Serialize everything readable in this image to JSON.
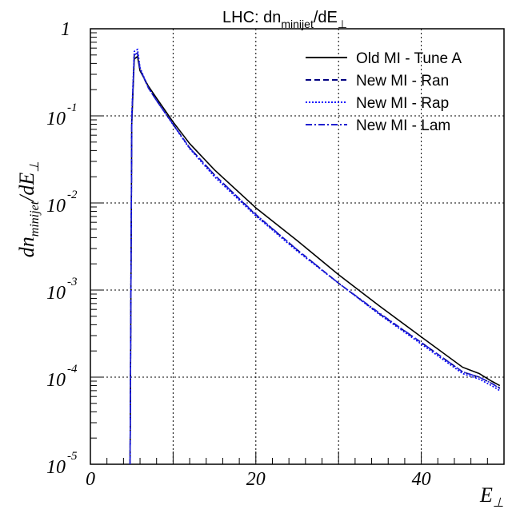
{
  "chart_data": {
    "type": "line",
    "title": "LHC: dn_minijet/dE_⊥",
    "title_parts": {
      "main": "LHC: dn",
      "sub": "minijet",
      "tail": "/dE",
      "tail_sub": "⊥"
    },
    "xlabel": "E_⊥",
    "xlabel_parts": {
      "main": "E",
      "sub": "⊥"
    },
    "ylabel": "dn_minijet/dE_⊥",
    "ylabel_parts": {
      "main": "dn",
      "sub": "minijet",
      "tail": "/dE",
      "tail_sub": "⊥"
    },
    "xlim": [
      0,
      50
    ],
    "ylim": [
      1e-05,
      1
    ],
    "yscale": "log",
    "grid": true,
    "legend_position": "top-right",
    "x_ticks": [
      {
        "value": 0,
        "label": "0"
      },
      {
        "value": 20,
        "label": "20"
      },
      {
        "value": 40,
        "label": "40"
      }
    ],
    "y_ticks": [
      {
        "value": 1,
        "base": "1",
        "exp": ""
      },
      {
        "value": 0.1,
        "base": "10",
        "exp": "-1"
      },
      {
        "value": 0.01,
        "base": "10",
        "exp": "-2"
      },
      {
        "value": 0.001,
        "base": "10",
        "exp": "-3"
      },
      {
        "value": 0.0001,
        "base": "10",
        "exp": "-4"
      },
      {
        "value": 1e-05,
        "base": "10",
        "exp": "-5"
      }
    ],
    "series": [
      {
        "name": "Old MI - Tune A",
        "color": "#000000",
        "dash": "solid",
        "x": [
          4.8,
          5.0,
          5.3,
          5.7,
          6.0,
          7,
          8,
          10,
          12,
          15,
          20,
          25,
          30,
          35,
          40,
          45,
          47,
          48.5,
          49.5
        ],
        "y": [
          1e-05,
          0.08,
          0.45,
          0.48,
          0.33,
          0.22,
          0.16,
          0.085,
          0.048,
          0.024,
          0.0088,
          0.0037,
          0.0015,
          0.00065,
          0.00029,
          0.00013,
          0.00011,
          9e-05,
          8e-05
        ]
      },
      {
        "name": "New MI - Ran",
        "color": "#000080",
        "dash": "dashed",
        "x": [
          4.8,
          5.0,
          5.3,
          5.7,
          6.0,
          7,
          8,
          10,
          12,
          15,
          20,
          25,
          30,
          35,
          40,
          45,
          47,
          48.5,
          49.5
        ],
        "y": [
          1e-05,
          0.09,
          0.5,
          0.52,
          0.34,
          0.21,
          0.15,
          0.08,
          0.043,
          0.021,
          0.0073,
          0.0029,
          0.0012,
          0.00053,
          0.00025,
          0.000115,
          0.0001,
          8.5e-05,
          7.5e-05
        ]
      },
      {
        "name": "New MI - Rap",
        "color": "#0000ff",
        "dash": "dotted",
        "x": [
          4.8,
          5.0,
          5.3,
          5.7,
          6.0,
          7,
          8,
          10,
          12,
          15,
          20,
          25,
          30,
          35,
          40,
          45,
          47,
          48.5,
          49.5
        ],
        "y": [
          1e-05,
          0.1,
          0.55,
          0.58,
          0.36,
          0.21,
          0.15,
          0.079,
          0.042,
          0.02,
          0.0071,
          0.0028,
          0.0012,
          0.00052,
          0.00024,
          0.00011,
          9.5e-05,
          8e-05,
          7e-05
        ]
      },
      {
        "name": "New MI - Lam",
        "color": "#2020d0",
        "dash": "dashdot",
        "x": [
          4.8,
          5.0,
          5.3,
          5.7,
          6.0,
          7,
          8,
          10,
          12,
          15,
          20,
          25,
          30,
          35,
          40,
          45,
          47,
          48.5,
          49.5
        ],
        "y": [
          1e-05,
          0.09,
          0.5,
          0.53,
          0.35,
          0.21,
          0.15,
          0.08,
          0.043,
          0.021,
          0.0074,
          0.0029,
          0.0012,
          0.00054,
          0.00025,
          0.000115,
          0.0001,
          8.5e-05,
          7.4e-05
        ]
      }
    ]
  }
}
